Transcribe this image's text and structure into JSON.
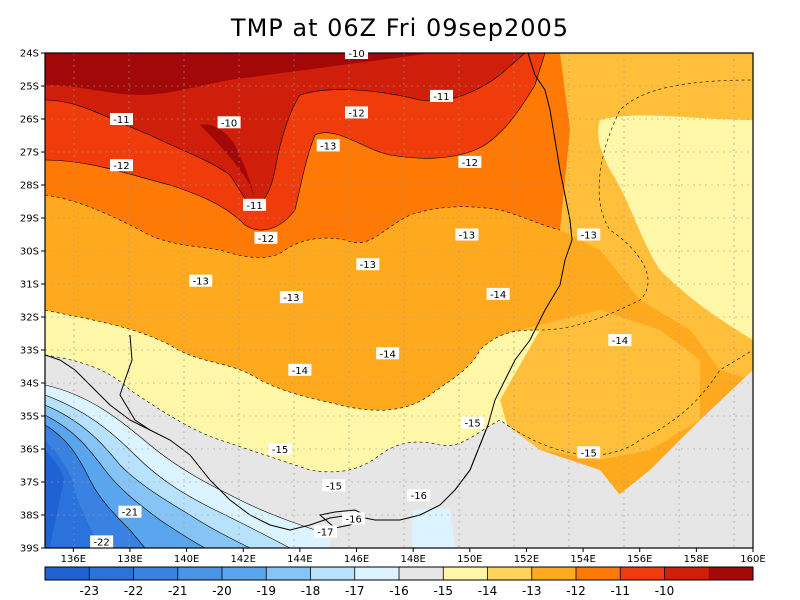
{
  "title": "TMP at 06Z Fri 09sep2005",
  "axes": {
    "y_ticks": [
      "24S",
      "25S",
      "26S",
      "27S",
      "28S",
      "29S",
      "30S",
      "31S",
      "32S",
      "33S",
      "34S",
      "35S",
      "36S",
      "37S",
      "38S",
      "39S"
    ],
    "x_ticks": [
      "136E",
      "138E",
      "140E",
      "142E",
      "144E",
      "146E",
      "148E",
      "150E",
      "152E",
      "154E",
      "156E",
      "158E",
      "160E"
    ]
  },
  "contour_labels": [
    {
      "text": "-10",
      "lon": 146.0,
      "lat": -24.0
    },
    {
      "text": "-11",
      "lon": 149.0,
      "lat": -25.3
    },
    {
      "text": "-12",
      "lon": 146.0,
      "lat": -25.8
    },
    {
      "text": "-11",
      "lon": 137.7,
      "lat": -26.0
    },
    {
      "text": "-10",
      "lon": 141.5,
      "lat": -26.1
    },
    {
      "text": "-13",
      "lon": 145.0,
      "lat": -26.8
    },
    {
      "text": "-12",
      "lon": 137.7,
      "lat": -27.4
    },
    {
      "text": "-12",
      "lon": 150.0,
      "lat": -27.3
    },
    {
      "text": "-11",
      "lon": 142.4,
      "lat": -28.6
    },
    {
      "text": "-12",
      "lon": 142.8,
      "lat": -29.6
    },
    {
      "text": "-13",
      "lon": 149.9,
      "lat": -29.5
    },
    {
      "text": "-13",
      "lon": 154.2,
      "lat": -29.5
    },
    {
      "text": "-13",
      "lon": 146.4,
      "lat": -30.4
    },
    {
      "text": "-13",
      "lon": 140.5,
      "lat": -30.9
    },
    {
      "text": "-14",
      "lon": 151.0,
      "lat": -31.3
    },
    {
      "text": "-13",
      "lon": 143.7,
      "lat": -31.4
    },
    {
      "text": "-14",
      "lon": 155.3,
      "lat": -32.7
    },
    {
      "text": "-14",
      "lon": 147.1,
      "lat": -33.1
    },
    {
      "text": "-14",
      "lon": 144.0,
      "lat": -33.6
    },
    {
      "text": "-15",
      "lon": 150.1,
      "lat": -35.2
    },
    {
      "text": "-15",
      "lon": 143.3,
      "lat": -36.0
    },
    {
      "text": "-15",
      "lon": 154.2,
      "lat": -36.1
    },
    {
      "text": "-15",
      "lon": 145.2,
      "lat": -37.1
    },
    {
      "text": "-16",
      "lon": 148.2,
      "lat": -37.4
    },
    {
      "text": "-21",
      "lon": 138.0,
      "lat": -37.9
    },
    {
      "text": "-16",
      "lon": 145.9,
      "lat": -38.1
    },
    {
      "text": "-17",
      "lon": 144.9,
      "lat": -38.5
    },
    {
      "text": "-22",
      "lon": 137.0,
      "lat": -38.8
    }
  ],
  "colorbar": {
    "labels": [
      "-23",
      "-22",
      "-21",
      "-20",
      "-19",
      "-18",
      "-17",
      "-16",
      "-15",
      "-14",
      "-13",
      "-12",
      "-11",
      "-10"
    ],
    "colors": [
      "#1f62d6",
      "#2a72dc",
      "#3a82e2",
      "#4a94e8",
      "#5aa6ee",
      "#86c4f6",
      "#b8e2fc",
      "#dcf4ff",
      "#e6e6e6",
      "#fff7a8",
      "#ffd45c",
      "#ffa91f",
      "#ff7a05",
      "#f03b0a",
      "#cf1e09",
      "#a30808"
    ]
  },
  "map_colors": {
    "m10": "#a30808",
    "m11": "#cf1e09",
    "m12": "#f03b0a",
    "m13": "#ff7a05",
    "m14": "#ffa91f",
    "m15": "#ffbf3a",
    "m16": "#fff7a8",
    "m17": "#e6e6e6",
    "m18": "#dcf4ff",
    "m19": "#b8e2fc",
    "m20": "#86c4f6",
    "m21": "#5aa6ee",
    "m22": "#3a82e2",
    "m23": "#1f62d6"
  }
}
